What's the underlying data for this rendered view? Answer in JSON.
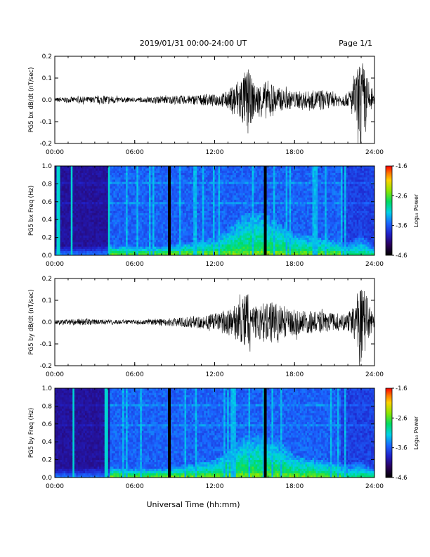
{
  "header": {
    "title": "2019/01/31  00:00-24:00 UT",
    "page": "Page 1/1"
  },
  "footer": {
    "xlabel": "Universal Time (hh:mm)"
  },
  "colorbar_ticks": [
    "-1.6",
    "-2.6",
    "-3.6",
    "-4.6"
  ],
  "colorbar_label": "Log₁₀ Power",
  "chart_data": [
    {
      "type": "line",
      "ylabel": "PG5 bx dB/dt (nT/sec)",
      "xlim": [
        0,
        24
      ],
      "ylim": [
        -0.2,
        0.2
      ],
      "x_ticks": [
        "00:00",
        "06:00",
        "12:00",
        "18:00",
        "24:00"
      ],
      "y_ticks": [
        "-0.2",
        "-0.1",
        "0.0",
        "0.1",
        "0.2"
      ],
      "series": [
        {
          "x": [
            0,
            1,
            2,
            3,
            4,
            5,
            6,
            7,
            8,
            9,
            10,
            11,
            12,
            13,
            14,
            14.5,
            15,
            16,
            17,
            18,
            19,
            20,
            21,
            22,
            22.5,
            23,
            24
          ],
          "envelope": [
            0.01,
            0.012,
            0.015,
            0.015,
            0.02,
            0.012,
            0.01,
            0.012,
            0.015,
            0.02,
            0.02,
            0.025,
            0.025,
            0.04,
            0.12,
            0.14,
            0.07,
            0.09,
            0.05,
            0.04,
            0.04,
            0.05,
            0.03,
            0.03,
            0.1,
            0.2,
            0.01
          ]
        }
      ]
    },
    {
      "type": "heatmap",
      "ylabel": "PG5 bx Freq (Hz)",
      "xlim": [
        0,
        24
      ],
      "ylim": [
        0.0,
        1.0
      ],
      "zlim": [
        -4.6,
        -1.6
      ],
      "x_ticks": [
        "00:00",
        "06:00",
        "12:00",
        "18:00",
        "24:00"
      ],
      "y_ticks": [
        "0.0",
        "0.2",
        "0.4",
        "0.6",
        "0.8",
        "1.0"
      ],
      "gaps_hours": [
        8.6,
        15.8
      ],
      "activity": {
        "hours": [
          0,
          2,
          4,
          6,
          8,
          10,
          12,
          13,
          14,
          15,
          16,
          17,
          18,
          20,
          22,
          23,
          24
        ],
        "max_freq": [
          0.1,
          0.1,
          0.12,
          0.1,
          0.1,
          0.15,
          0.2,
          0.3,
          0.45,
          0.5,
          0.45,
          0.35,
          0.25,
          0.2,
          0.15,
          0.25,
          0.1
        ]
      }
    },
    {
      "type": "line",
      "ylabel": "PG5 by dB/dt (nT/sec)",
      "xlim": [
        0,
        24
      ],
      "ylim": [
        -0.2,
        0.2
      ],
      "x_ticks": [
        "00:00",
        "06:00",
        "12:00",
        "18:00",
        "24:00"
      ],
      "y_ticks": [
        "-0.2",
        "-0.1",
        "0.0",
        "0.1",
        "0.2"
      ],
      "series": [
        {
          "x": [
            0,
            1,
            2,
            3,
            4,
            5,
            6,
            7,
            8,
            9,
            10,
            11,
            12,
            13,
            14,
            14.5,
            15,
            16,
            17,
            18,
            19,
            20,
            21,
            22,
            22.5,
            23,
            24
          ],
          "envelope": [
            0.01,
            0.012,
            0.015,
            0.012,
            0.012,
            0.01,
            0.01,
            0.012,
            0.015,
            0.02,
            0.025,
            0.03,
            0.04,
            0.06,
            0.1,
            0.15,
            0.07,
            0.1,
            0.08,
            0.06,
            0.05,
            0.05,
            0.04,
            0.04,
            0.1,
            0.19,
            0.01
          ]
        }
      ]
    },
    {
      "type": "heatmap",
      "ylabel": "PG5 by Freq (Hz)",
      "xlim": [
        0,
        24
      ],
      "ylim": [
        0.0,
        1.0
      ],
      "zlim": [
        -4.6,
        -1.6
      ],
      "x_ticks": [
        "00:00",
        "06:00",
        "12:00",
        "18:00",
        "24:00"
      ],
      "y_ticks": [
        "0.0",
        "0.2",
        "0.4",
        "0.6",
        "0.8",
        "1.0"
      ],
      "gaps_hours": [
        8.6,
        15.8
      ],
      "activity": {
        "hours": [
          0,
          2,
          4,
          6,
          8,
          10,
          12,
          13,
          14,
          15,
          16,
          17,
          18,
          20,
          22,
          23,
          24
        ],
        "max_freq": [
          0.1,
          0.1,
          0.12,
          0.1,
          0.1,
          0.15,
          0.2,
          0.3,
          0.45,
          0.5,
          0.45,
          0.4,
          0.25,
          0.2,
          0.15,
          0.2,
          0.1
        ]
      }
    }
  ]
}
